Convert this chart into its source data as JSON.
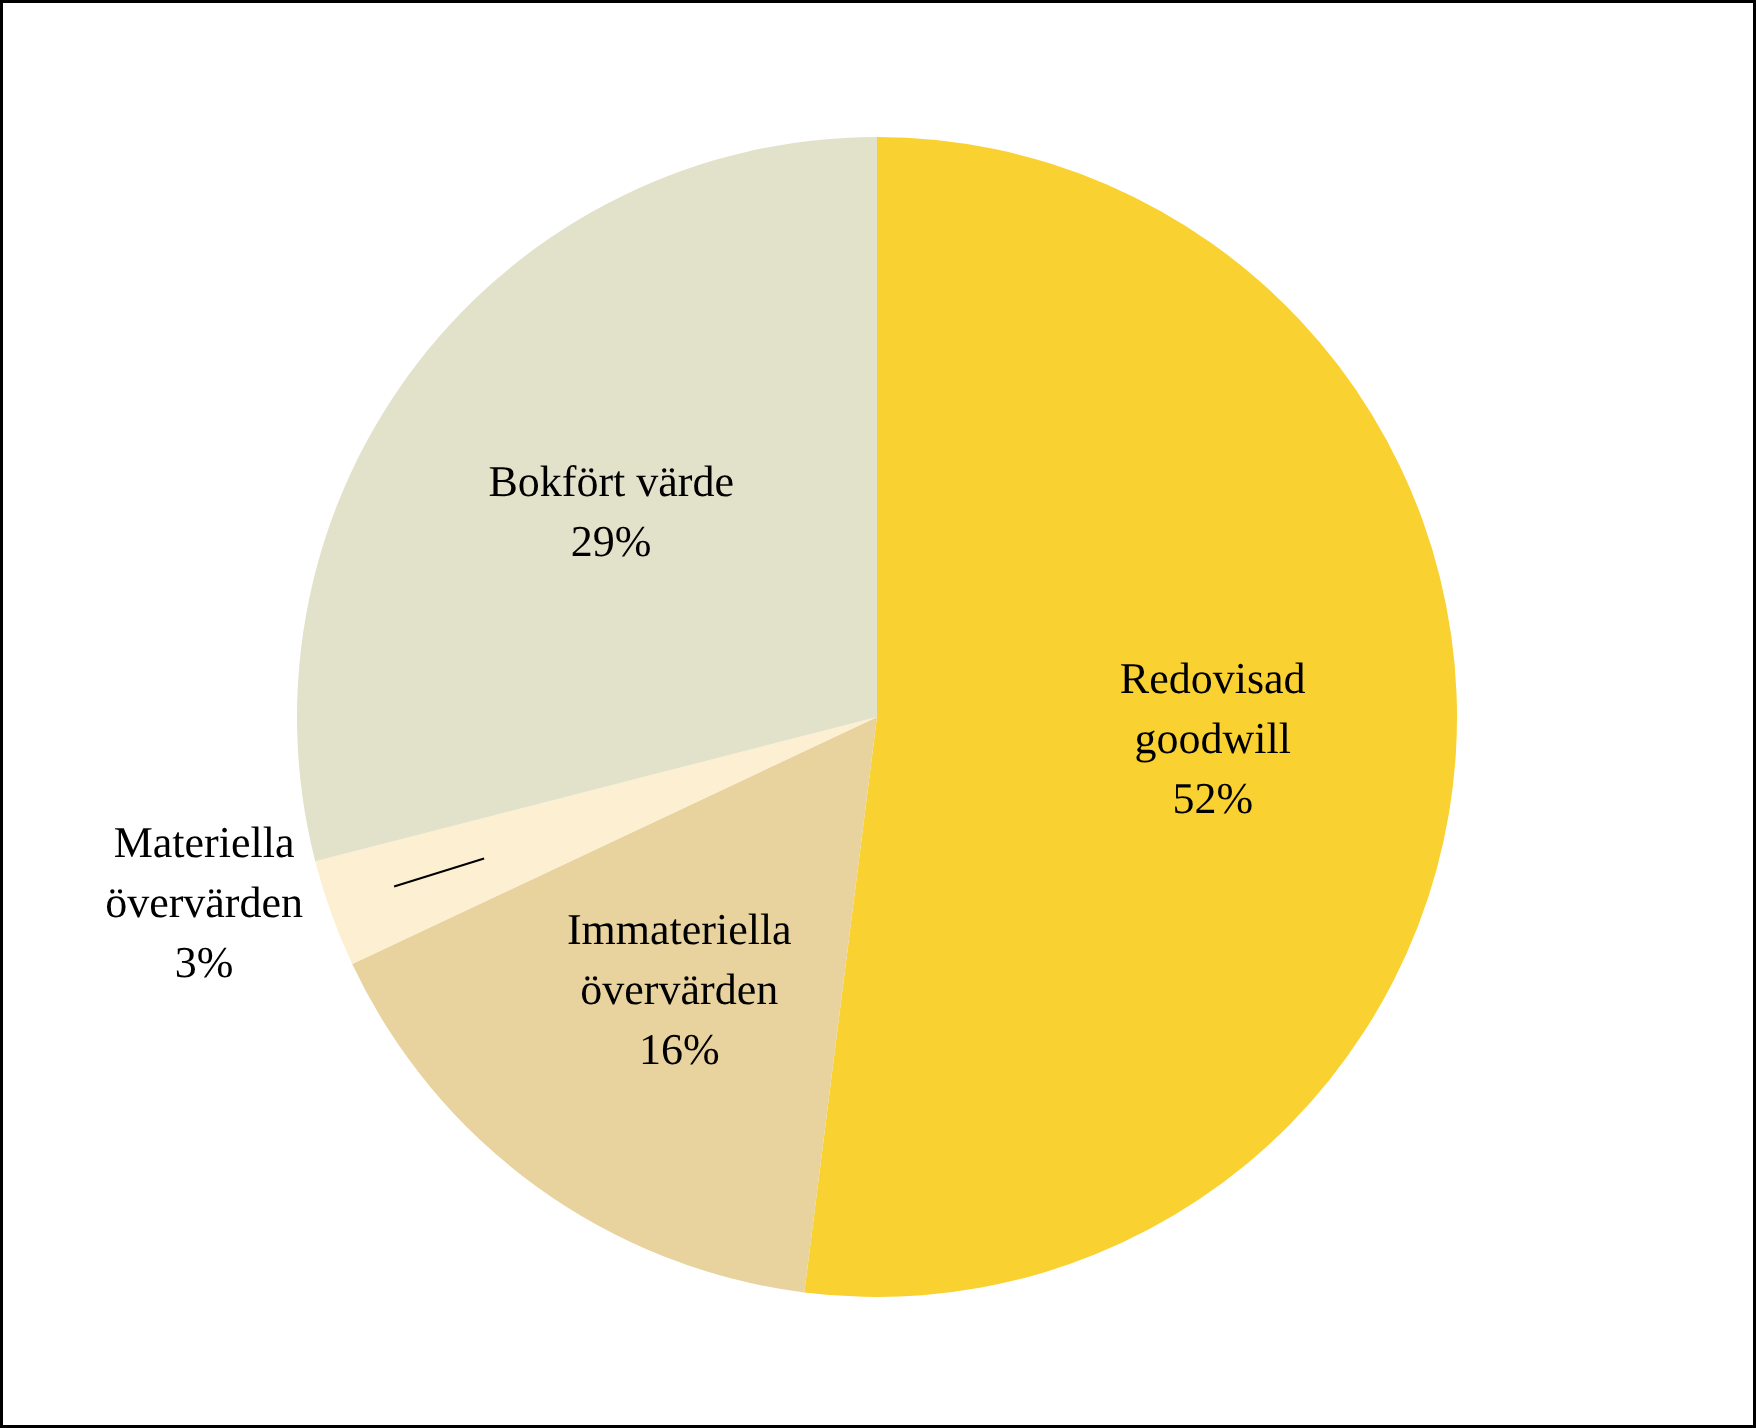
{
  "chart_data": {
    "type": "pie",
    "categories": [
      "Redovisad goodwill",
      "Immateriella övervärden",
      "Materiella övervärden",
      "Bokfört värde"
    ],
    "values": [
      52,
      16,
      3,
      29
    ],
    "value_labels": [
      "52%",
      "16%",
      "3%",
      "29%"
    ],
    "colors": [
      "#f9d130",
      "#e8d29e",
      "#fdefd2",
      "#e2e1c9"
    ]
  }
}
